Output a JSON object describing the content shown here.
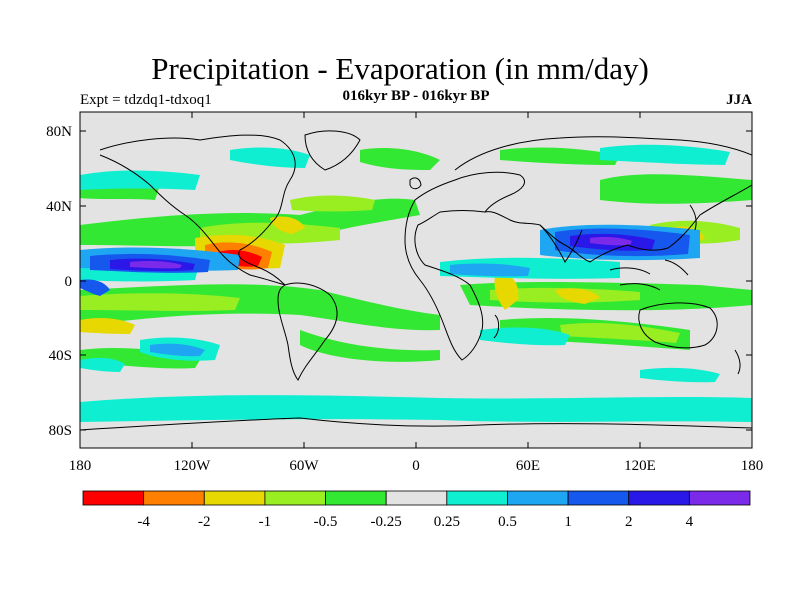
{
  "title": "Precipitation - Evaporation (in mm/day)",
  "left_label": "Expt = tdzdq1-tdxoq1",
  "center_label": "016kyr BP - 016kyr BP",
  "right_label": "JJA",
  "lat_labels": [
    "80N",
    "40N",
    "0",
    "40S",
    "80S"
  ],
  "lon_labels": [
    "180",
    "120W",
    "60W",
    "0",
    "60E",
    "120E",
    "180"
  ],
  "colorbar": {
    "colors": [
      "#ff0000",
      "#ff7f00",
      "#e6d800",
      "#99ee22",
      "#33e833",
      "#e3e3e3",
      "#10eed2",
      "#1ea6f2",
      "#1657ee",
      "#2a18e8",
      "#7a2ae8"
    ],
    "labels": [
      "-4",
      "-2",
      "-1",
      "-0.5",
      "-0.25",
      "0.25",
      "0.5",
      "1",
      "2",
      "4"
    ]
  }
}
